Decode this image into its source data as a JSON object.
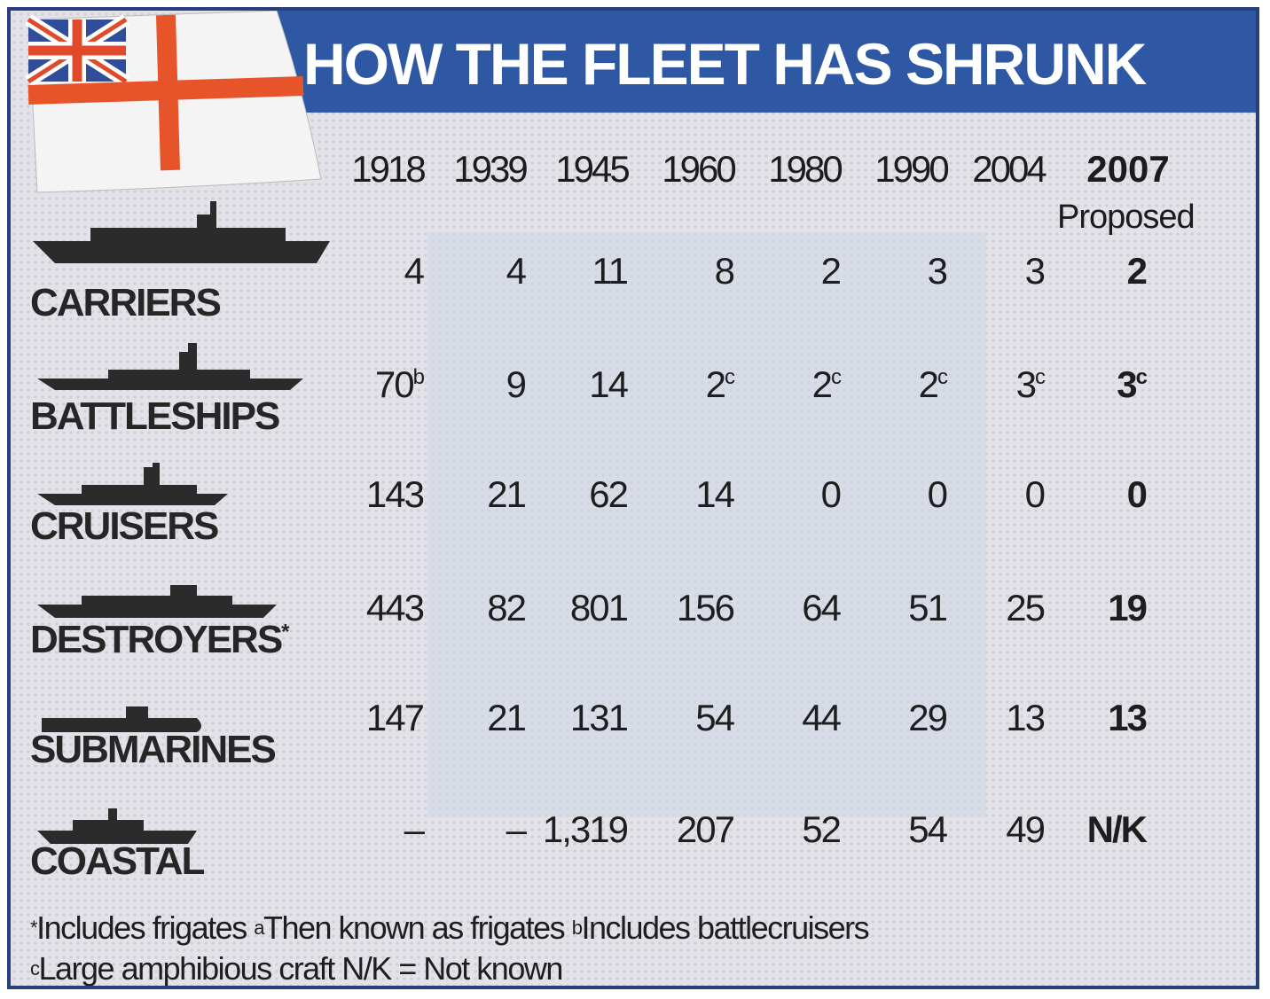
{
  "header": {
    "title": "HOW THE FLEET HAS SHRUNK"
  },
  "table": {
    "columns": [
      "1918",
      "1939",
      "1945",
      "1960",
      "1980",
      "1990",
      "2004",
      "2007"
    ],
    "column_note": "Proposed",
    "rows": [
      {
        "label": "CARRIERS",
        "cells": [
          "4",
          "4",
          "11",
          "8",
          "2",
          "3",
          "3",
          "2"
        ]
      },
      {
        "label": "BATTLESHIPS",
        "cells": [
          {
            "text": "70",
            "sup": "b"
          },
          "9",
          "14",
          {
            "text": "2",
            "sup": "c"
          },
          {
            "text": "2",
            "sup": "c"
          },
          {
            "text": "2",
            "sup": "c"
          },
          {
            "text": "3",
            "sup": "c"
          },
          {
            "text": "3",
            "sup": "c"
          }
        ]
      },
      {
        "label": "CRUISERS",
        "cells": [
          "143",
          "21",
          "62",
          "14",
          "0",
          "0",
          "0",
          "0"
        ]
      },
      {
        "label": "DESTROYERS",
        "label_sup": "*",
        "cells": [
          "443",
          "82",
          "801",
          "156",
          "64",
          "51",
          "25",
          "19"
        ]
      },
      {
        "label": "SUBMARINES",
        "cells": [
          "147",
          "21",
          "131",
          "54",
          "44",
          "29",
          "13",
          "13"
        ]
      },
      {
        "label": "COASTAL",
        "cells": [
          "–",
          "–",
          "1,319",
          "207",
          "52",
          "54",
          "49",
          "N/K"
        ]
      }
    ]
  },
  "footnotes": [
    {
      "marker": "*",
      "text": "Includes frigates"
    },
    {
      "marker": "a",
      "text": "Then known as frigates"
    },
    {
      "marker": "b",
      "text": "Includes battlecruisers"
    },
    {
      "marker": "c",
      "text": "Large amphibious craft"
    },
    {
      "marker": "",
      "text": "N/K = Not known"
    }
  ]
}
